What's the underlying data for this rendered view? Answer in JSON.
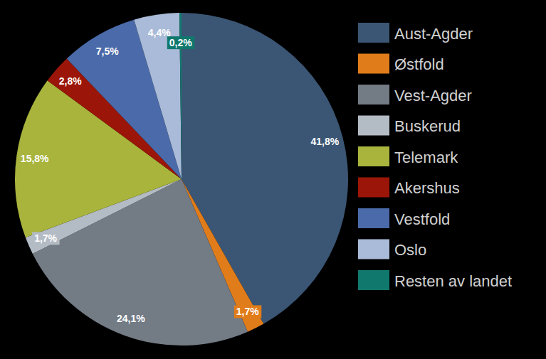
{
  "chart_data": {
    "type": "pie",
    "categories": [
      "Aust-Agder",
      "Østfold",
      "Vest-Agder",
      "Buskerud",
      "Telemark",
      "Akershus",
      "Vestfold",
      "Oslo",
      "Resten av landet"
    ],
    "values": [
      41.8,
      1.7,
      24.1,
      1.7,
      15.8,
      2.8,
      7.5,
      4.4,
      0.2
    ],
    "value_labels": [
      "41,8%",
      "1,7%",
      "24,1%",
      "1,7%",
      "15,8%",
      "2,8%",
      "7,5%",
      "4,4%",
      "0,2%"
    ],
    "colors": [
      "#3b5674",
      "#e07c1a",
      "#737b85",
      "#b3bbc4",
      "#a8b43c",
      "#9b1608",
      "#4a6aa9",
      "#a9bbd8",
      "#10786d"
    ],
    "data_labels": true,
    "legend": "right"
  }
}
